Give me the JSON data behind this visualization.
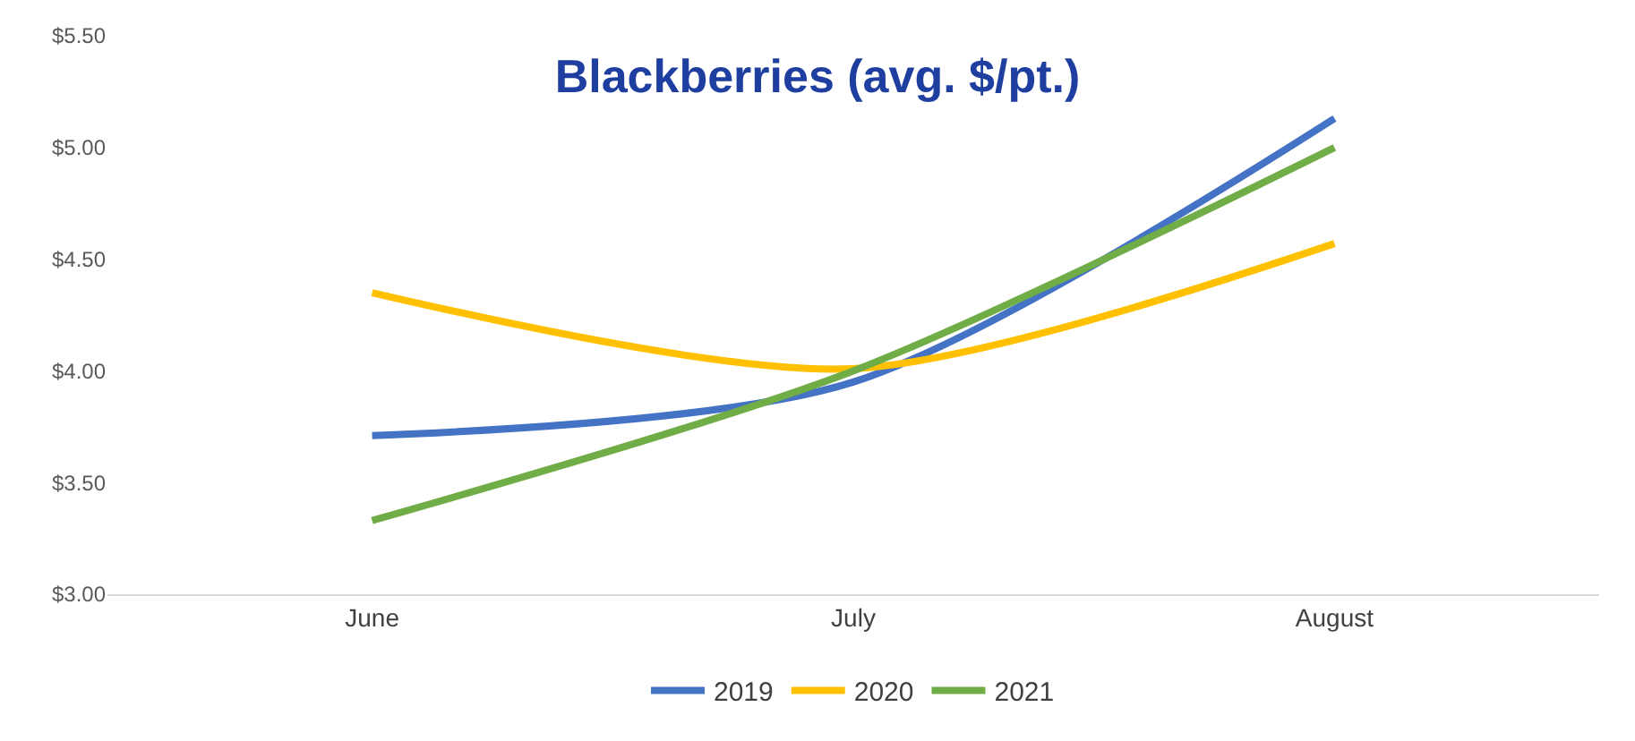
{
  "chart_data": {
    "type": "line",
    "title": "Blackberries (avg. $/pt.)",
    "categories": [
      "June",
      "July",
      "August"
    ],
    "series": [
      {
        "name": "2019",
        "color": "#4472c4",
        "values": [
          3.71,
          3.95,
          5.13
        ]
      },
      {
        "name": "2020",
        "color": "#ffc000",
        "values": [
          4.35,
          4.01,
          4.57
        ]
      },
      {
        "name": "2021",
        "color": "#70ad47",
        "values": [
          3.33,
          4.0,
          5.0
        ]
      }
    ],
    "ylim": [
      3.0,
      5.5
    ],
    "yticks": [
      {
        "value": 3.0,
        "label": "$3.00"
      },
      {
        "value": 3.5,
        "label": "$3.50"
      },
      {
        "value": 4.0,
        "label": "$4.00"
      },
      {
        "value": 4.5,
        "label": "$4.50"
      },
      {
        "value": 5.0,
        "label": "$5.00"
      },
      {
        "value": 5.5,
        "label": "$5.50"
      }
    ],
    "grid": false,
    "legend": "bottom",
    "marker": "none",
    "line_style": "solid"
  }
}
